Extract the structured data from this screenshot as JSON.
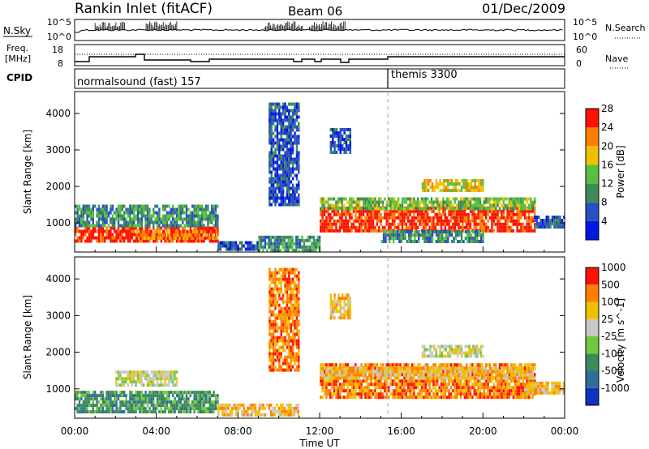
{
  "header": {
    "station": "Rankin Inlet (fitACF)",
    "beam": "Beam 06",
    "date": "01/Dec/2009"
  },
  "noise_panel": {
    "left_label": "N.Sky",
    "right_label": "N.Search",
    "left_ticks": [
      "10^5",
      "10^0"
    ],
    "right_ticks": [
      "10^5",
      "10^0"
    ]
  },
  "freq_panel": {
    "left_label_1": "Freq.",
    "left_label_2": "[MHz]",
    "right_label": "Nave",
    "left_ticks": [
      "18",
      "8"
    ],
    "right_ticks": [
      "60",
      "0"
    ]
  },
  "cpid_panel": {
    "label": "CPID",
    "modes": [
      {
        "name": "normalsound (fast) 157",
        "start_hour": 0
      },
      {
        "name": "themis 3300",
        "start_hour": 15.3
      }
    ]
  },
  "chart_data": [
    {
      "type": "heatmap",
      "name": "power",
      "ylabel": "Slant Range [km]",
      "yticks": [
        "1000",
        "2000",
        "3000",
        "4000"
      ],
      "ylim": [
        200,
        4600
      ],
      "colorbar_label": "Power [dB]",
      "colorbar_ticks": [
        "4",
        "8",
        "12",
        "16",
        "20",
        "24",
        "28"
      ],
      "colorbar_colors": [
        "#0018e0",
        "#2a4fc0",
        "#3c8a5a",
        "#58c040",
        "#f0c000",
        "#ff8000",
        "#ff1000"
      ],
      "clusters": [
        {
          "x": [
            0,
            7
          ],
          "y": [
            500,
            900
          ],
          "level": 6
        },
        {
          "x": [
            0,
            7
          ],
          "y": [
            900,
            1500
          ],
          "level": 2
        },
        {
          "x": [
            3,
            7
          ],
          "y": [
            600,
            800
          ],
          "level": 5
        },
        {
          "x": [
            7,
            9
          ],
          "y": [
            250,
            500
          ],
          "level": 1
        },
        {
          "x": [
            9,
            12
          ],
          "y": [
            250,
            650
          ],
          "level": 2
        },
        {
          "x": [
            12,
            22.5
          ],
          "y": [
            750,
            1450
          ],
          "level": 6
        },
        {
          "x": [
            12,
            22.5
          ],
          "y": [
            1350,
            1700
          ],
          "level": 3
        },
        {
          "x": [
            15,
            20
          ],
          "y": [
            500,
            800
          ],
          "level": 2
        },
        {
          "x": [
            17,
            20
          ],
          "y": [
            1900,
            2200
          ],
          "level": 4
        },
        {
          "x": [
            22.5,
            24
          ],
          "y": [
            900,
            1200
          ],
          "level": 1
        },
        {
          "x": [
            9.5,
            11
          ],
          "y": [
            1500,
            4300
          ],
          "level": 1
        },
        {
          "x": [
            12.5,
            13.5
          ],
          "y": [
            2900,
            3600
          ],
          "level": 1
        }
      ]
    },
    {
      "type": "heatmap",
      "name": "velocity",
      "ylabel": "Slant Range [km]",
      "yticks": [
        "1000",
        "2000",
        "3000",
        "4000"
      ],
      "ylim": [
        200,
        4600
      ],
      "colorbar_label": "Velocity [m s^-1]",
      "colorbar_ticks": [
        "1000",
        "500",
        "100",
        "25",
        "-25",
        "-100",
        "-500",
        "-1000"
      ],
      "colorbar_colors": [
        "#1030c0",
        "#2f6e9a",
        "#3c8a5a",
        "#70c840",
        "#c8c8c8",
        "#f0c000",
        "#ff8000",
        "#ff1000"
      ],
      "clusters": [
        {
          "x": [
            0,
            7
          ],
          "y": [
            400,
            950
          ],
          "level": 2
        },
        {
          "x": [
            2,
            5
          ],
          "y": [
            1100,
            1500
          ],
          "level": 4
        },
        {
          "x": [
            7,
            11
          ],
          "y": [
            250,
            600
          ],
          "level": 5
        },
        {
          "x": [
            12,
            22.5
          ],
          "y": [
            800,
            1700
          ],
          "level": 6
        },
        {
          "x": [
            12,
            22.5
          ],
          "y": [
            1300,
            1600
          ],
          "level": 5
        },
        {
          "x": [
            17,
            20
          ],
          "y": [
            1900,
            2200
          ],
          "level": 4
        },
        {
          "x": [
            22,
            24
          ],
          "y": [
            900,
            1200
          ],
          "level": 5
        },
        {
          "x": [
            9.5,
            11
          ],
          "y": [
            1500,
            4300
          ],
          "level": 6
        },
        {
          "x": [
            12.5,
            13.5
          ],
          "y": [
            2900,
            3600
          ],
          "level": 5
        }
      ]
    }
  ],
  "xaxis": {
    "label": "Time UT",
    "ticks": [
      "00:00",
      "04:00",
      "08:00",
      "12:00",
      "16:00",
      "20:00",
      "00:00"
    ],
    "range_hours": [
      0,
      24
    ],
    "mode_change_hour": 15.3
  }
}
